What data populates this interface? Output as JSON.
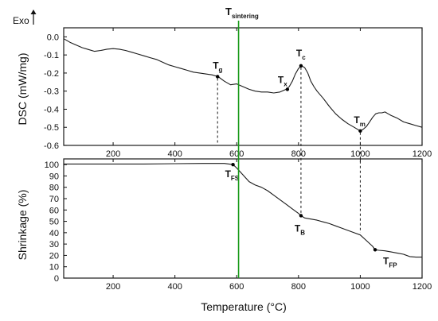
{
  "chart_data": [
    {
      "type": "line",
      "panel": "top",
      "ylabel": "DSC (mW/mg)",
      "xlim": [
        40,
        1200
      ],
      "ylim": [
        -0.6,
        0.05
      ],
      "x_ticks": [
        "200",
        "400",
        "600",
        "800",
        "1000",
        "1200"
      ],
      "y_ticks": [
        "0.0",
        "-0.1",
        "-0.2",
        "-0.3",
        "-0.4",
        "-0.5",
        "-0.6"
      ],
      "annotations": [
        {
          "base": "T",
          "sub": "g",
          "x": 538,
          "y": -0.22
        },
        {
          "base": "T",
          "sub": "x",
          "x": 764,
          "y": -0.29
        },
        {
          "base": "T",
          "sub": "c",
          "x": 808,
          "y": -0.16
        },
        {
          "base": "T",
          "sub": "m",
          "x": 1000,
          "y": -0.52
        }
      ],
      "series": [
        {
          "x": [
            40,
            60,
            80,
            100,
            120,
            140,
            160,
            180,
            200,
            220,
            240,
            260,
            280,
            300,
            320,
            340,
            360,
            380,
            400,
            420,
            440,
            460,
            480,
            500,
            520,
            540,
            560,
            580,
            600,
            620,
            640,
            660,
            680,
            700,
            720,
            740,
            760,
            770,
            780,
            790,
            800,
            810,
            820,
            830,
            840,
            850,
            860,
            880,
            900,
            920,
            940,
            960,
            980,
            1000,
            1010,
            1020,
            1030,
            1040,
            1050,
            1060,
            1070,
            1080,
            1090,
            1100,
            1120,
            1140,
            1160,
            1180,
            1200
          ],
          "y": [
            -0.01,
            -0.03,
            -0.045,
            -0.06,
            -0.07,
            -0.08,
            -0.075,
            -0.068,
            -0.065,
            -0.068,
            -0.075,
            -0.085,
            -0.095,
            -0.105,
            -0.115,
            -0.125,
            -0.14,
            -0.155,
            -0.165,
            -0.175,
            -0.185,
            -0.195,
            -0.2,
            -0.205,
            -0.21,
            -0.22,
            -0.245,
            -0.265,
            -0.26,
            -0.275,
            -0.29,
            -0.3,
            -0.305,
            -0.305,
            -0.31,
            -0.305,
            -0.29,
            -0.275,
            -0.245,
            -0.205,
            -0.175,
            -0.16,
            -0.17,
            -0.2,
            -0.245,
            -0.275,
            -0.3,
            -0.34,
            -0.385,
            -0.425,
            -0.455,
            -0.48,
            -0.5,
            -0.52,
            -0.51,
            -0.495,
            -0.47,
            -0.445,
            -0.425,
            -0.42,
            -0.42,
            -0.415,
            -0.425,
            -0.435,
            -0.45,
            -0.47,
            -0.48,
            -0.49,
            -0.5
          ]
        }
      ]
    },
    {
      "type": "line",
      "panel": "bottom",
      "xlabel": "Temperature (°C)",
      "ylabel": "Shrinkage (%)",
      "xlim": [
        40,
        1200
      ],
      "ylim": [
        0,
        105
      ],
      "x_ticks": [
        "200",
        "400",
        "600",
        "800",
        "1000",
        "1200"
      ],
      "y_ticks": [
        "0",
        "10",
        "20",
        "30",
        "40",
        "50",
        "60",
        "70",
        "80",
        "90",
        "100"
      ],
      "annotations": [
        {
          "base": "T",
          "sub": "FS",
          "x": 588,
          "y": 100
        },
        {
          "base": "T",
          "sub": "B",
          "x": 808,
          "y": 55
        },
        {
          "base": "T",
          "sub": "FP",
          "x": 1048,
          "y": 25
        }
      ],
      "series": [
        {
          "x": [
            40,
            100,
            200,
            300,
            400,
            500,
            560,
            588,
            600,
            620,
            640,
            660,
            680,
            700,
            720,
            740,
            760,
            780,
            800,
            808,
            820,
            840,
            860,
            880,
            900,
            920,
            940,
            960,
            980,
            1000,
            1020,
            1040,
            1048,
            1060,
            1080,
            1100,
            1120,
            1140,
            1160,
            1180,
            1200
          ],
          "y": [
            100.5,
            100.5,
            100.5,
            100.5,
            100.8,
            101,
            101,
            100,
            97,
            91,
            85,
            82,
            80,
            77,
            73,
            69,
            65,
            61,
            57,
            55,
            53,
            52,
            51,
            49.5,
            48,
            46,
            44,
            42,
            40,
            38,
            33,
            28,
            25,
            24.5,
            24,
            23,
            22,
            21,
            19,
            18.5,
            18.5
          ]
        }
      ]
    }
  ],
  "labels": {
    "exo": "Exo",
    "tsintering_base": "T",
    "tsintering_sub": "sintering",
    "tsintering_x": 606
  },
  "colors": {
    "axes": "#1a1a1a",
    "line": "#1a1a1a",
    "sintering_line": "#1a9a1a",
    "dashed": "#1a1a1a",
    "point": "#000000"
  }
}
